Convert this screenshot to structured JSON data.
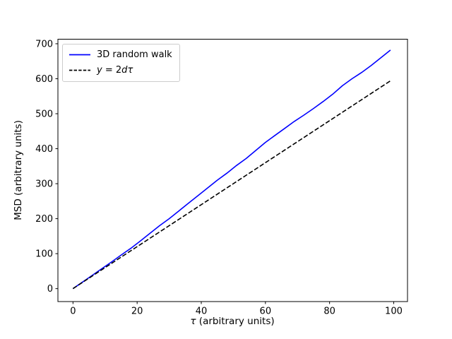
{
  "figure": {
    "background": "#ffffff",
    "axis_color": "#000000",
    "legend_border_color": "#cccccc"
  },
  "chart_data": {
    "type": "line",
    "title": "",
    "xlabel": "τ (arbitrary units)",
    "xlabel_symbol": "τ",
    "xlabel_rest": " (arbitrary units)",
    "ylabel": "MSD (arbitrary units)",
    "xlim": [
      -4.7,
      104.3
    ],
    "ylim": [
      -37,
      713
    ],
    "xticks": [
      0,
      20,
      40,
      60,
      80,
      100
    ],
    "yticks": [
      0,
      100,
      200,
      300,
      400,
      500,
      600,
      700
    ],
    "grid": false,
    "legend_position": "upper-left",
    "series": [
      {
        "name": "3D random walk",
        "color": "#0000ff",
        "style": "solid",
        "italic": false,
        "x": [
          0,
          3,
          6,
          9,
          12,
          15,
          18,
          21,
          24,
          27,
          30,
          33,
          36,
          39,
          42,
          45,
          48,
          51,
          54,
          57,
          60,
          63,
          66,
          69,
          72,
          75,
          78,
          81,
          84,
          87,
          90,
          93,
          96,
          99
        ],
        "y": [
          0,
          19,
          38,
          57,
          76,
          96,
          115,
          136,
          158,
          180,
          200,
          222,
          244,
          266,
          288,
          310,
          330,
          352,
          372,
          395,
          418,
          438,
          458,
          478,
          496,
          515,
          535,
          556,
          580,
          600,
          618,
          638,
          660,
          682
        ]
      },
      {
        "name": "y = 2dτ",
        "color": "#000000",
        "style": "dashed",
        "italic": true,
        "x": [
          0,
          99
        ],
        "y": [
          0,
          594
        ]
      }
    ]
  }
}
